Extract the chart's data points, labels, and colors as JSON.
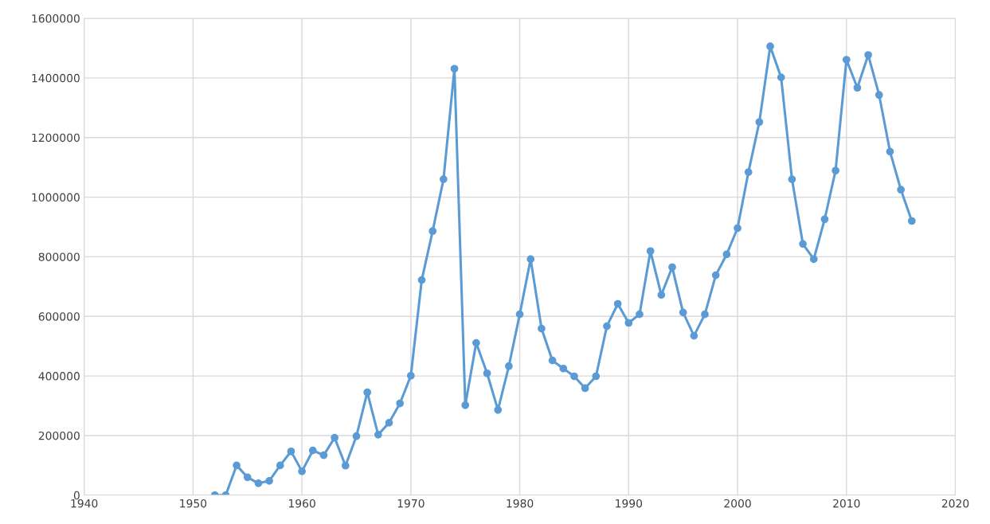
{
  "chart_data": {
    "type": "line",
    "x": [
      1952,
      1953,
      1954,
      1955,
      1956,
      1957,
      1958,
      1959,
      1960,
      1961,
      1962,
      1963,
      1964,
      1965,
      1966,
      1967,
      1968,
      1969,
      1970,
      1971,
      1972,
      1973,
      1974,
      1975,
      1976,
      1977,
      1978,
      1979,
      1980,
      1981,
      1982,
      1983,
      1984,
      1985,
      1986,
      1987,
      1988,
      1989,
      1990,
      1991,
      1992,
      1993,
      1994,
      1995,
      1996,
      1997,
      1998,
      1999,
      2000,
      2001,
      2002,
      2003,
      2004,
      2005,
      2006,
      2007,
      2008,
      2009,
      2010,
      2011,
      2012,
      2013,
      2014,
      2015,
      2016
    ],
    "series": [
      {
        "color": "#5b9bd5",
        "values": [
          0,
          0,
          100000,
          60000,
          40000,
          48000,
          100000,
          147000,
          80000,
          150000,
          134000,
          193000,
          99000,
          198000,
          345000,
          203000,
          243000,
          308000,
          401000,
          722000,
          886000,
          1060000,
          1431000,
          302000,
          511000,
          409000,
          286000,
          433000,
          607000,
          792000,
          559000,
          452000,
          425000,
          399000,
          359000,
          399000,
          567000,
          642000,
          578000,
          607000,
          819000,
          672000,
          765000,
          613000,
          535000,
          607000,
          738000,
          808000,
          896000,
          1084000,
          1252000,
          1506000,
          1402000,
          1060000,
          843000,
          792000,
          926000,
          1089000,
          1461000,
          1367000,
          1477000,
          1343000,
          1153000,
          1025000,
          920000
        ]
      }
    ],
    "xlim": [
      1940,
      2020
    ],
    "xticks": [
      1940,
      1950,
      1960,
      1970,
      1980,
      1990,
      2000,
      2010,
      2020
    ],
    "ylim": [
      0,
      1600000
    ],
    "yticks": [
      0,
      200000,
      400000,
      600000,
      800000,
      1000000,
      1200000,
      1400000,
      1600000
    ],
    "grid": true,
    "marker": "circle",
    "line_style": "solid",
    "legend": false
  }
}
